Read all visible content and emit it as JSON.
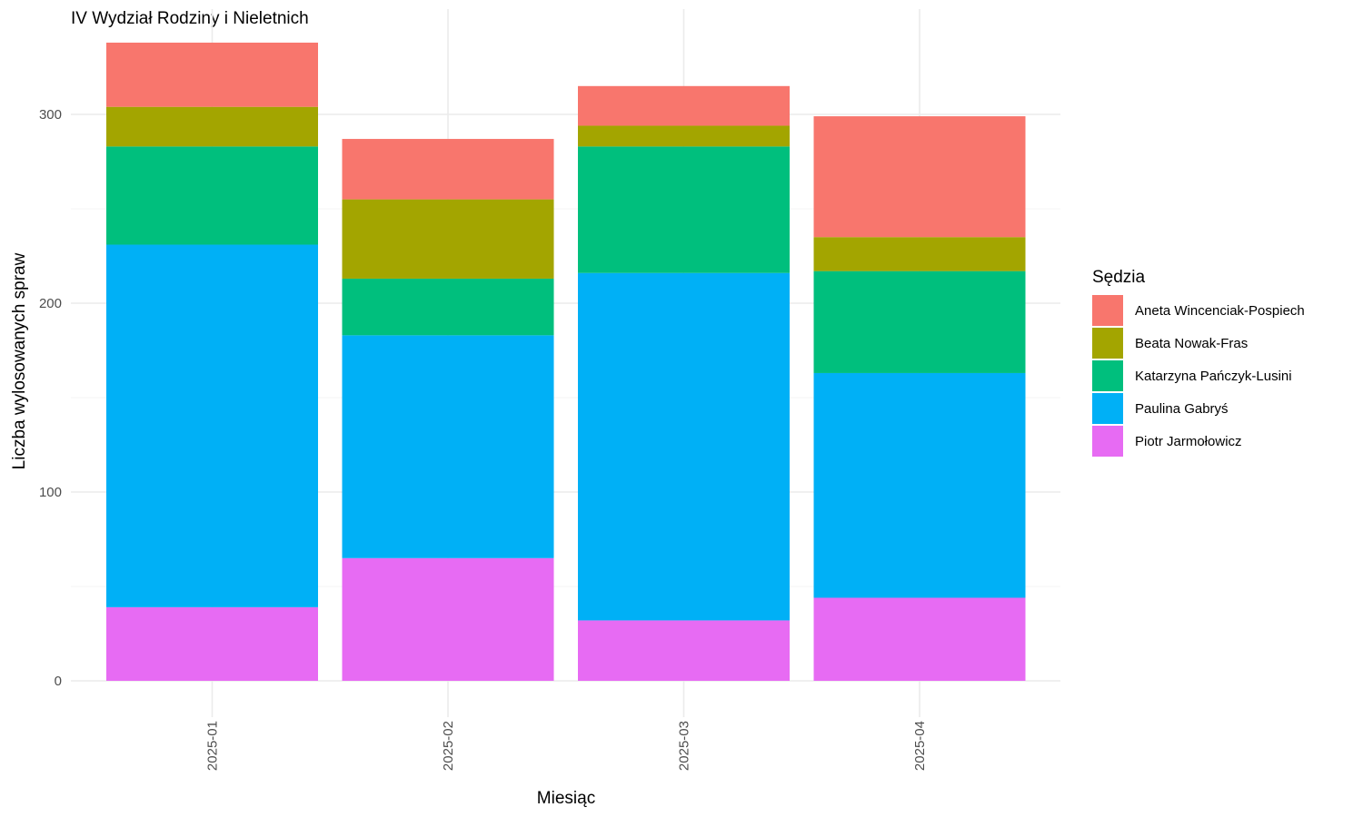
{
  "chart_data": {
    "type": "bar",
    "stacked": true,
    "title": "IV Wydział Rodziny i Nieletnich",
    "xlabel": "Miesiąc",
    "ylabel": "Liczba wylosowanych spraw",
    "categories": [
      "2025-01",
      "2025-02",
      "2025-03",
      "2025-04"
    ],
    "ylim": [
      0,
      340
    ],
    "yticks": [
      0,
      100,
      200,
      300
    ],
    "grid": true,
    "legend_title": "Sędzia",
    "legend_position": "right",
    "series": [
      {
        "name": "Aneta Wincenciak-Pospiech",
        "color": "#F8766D",
        "values": [
          34,
          32,
          21,
          64
        ]
      },
      {
        "name": "Beata Nowak-Fras",
        "color": "#A3A500",
        "values": [
          21,
          42,
          11,
          18
        ]
      },
      {
        "name": "Katarzyna Pańczyk-Lusini",
        "color": "#00BF7D",
        "values": [
          52,
          30,
          67,
          54
        ]
      },
      {
        "name": "Paulina Gabryś",
        "color": "#00B0F6",
        "values": [
          192,
          118,
          184,
          119
        ]
      },
      {
        "name": "Piotr Jarmołowicz",
        "color": "#E76BF3",
        "values": [
          39,
          65,
          32,
          44
        ]
      }
    ]
  }
}
